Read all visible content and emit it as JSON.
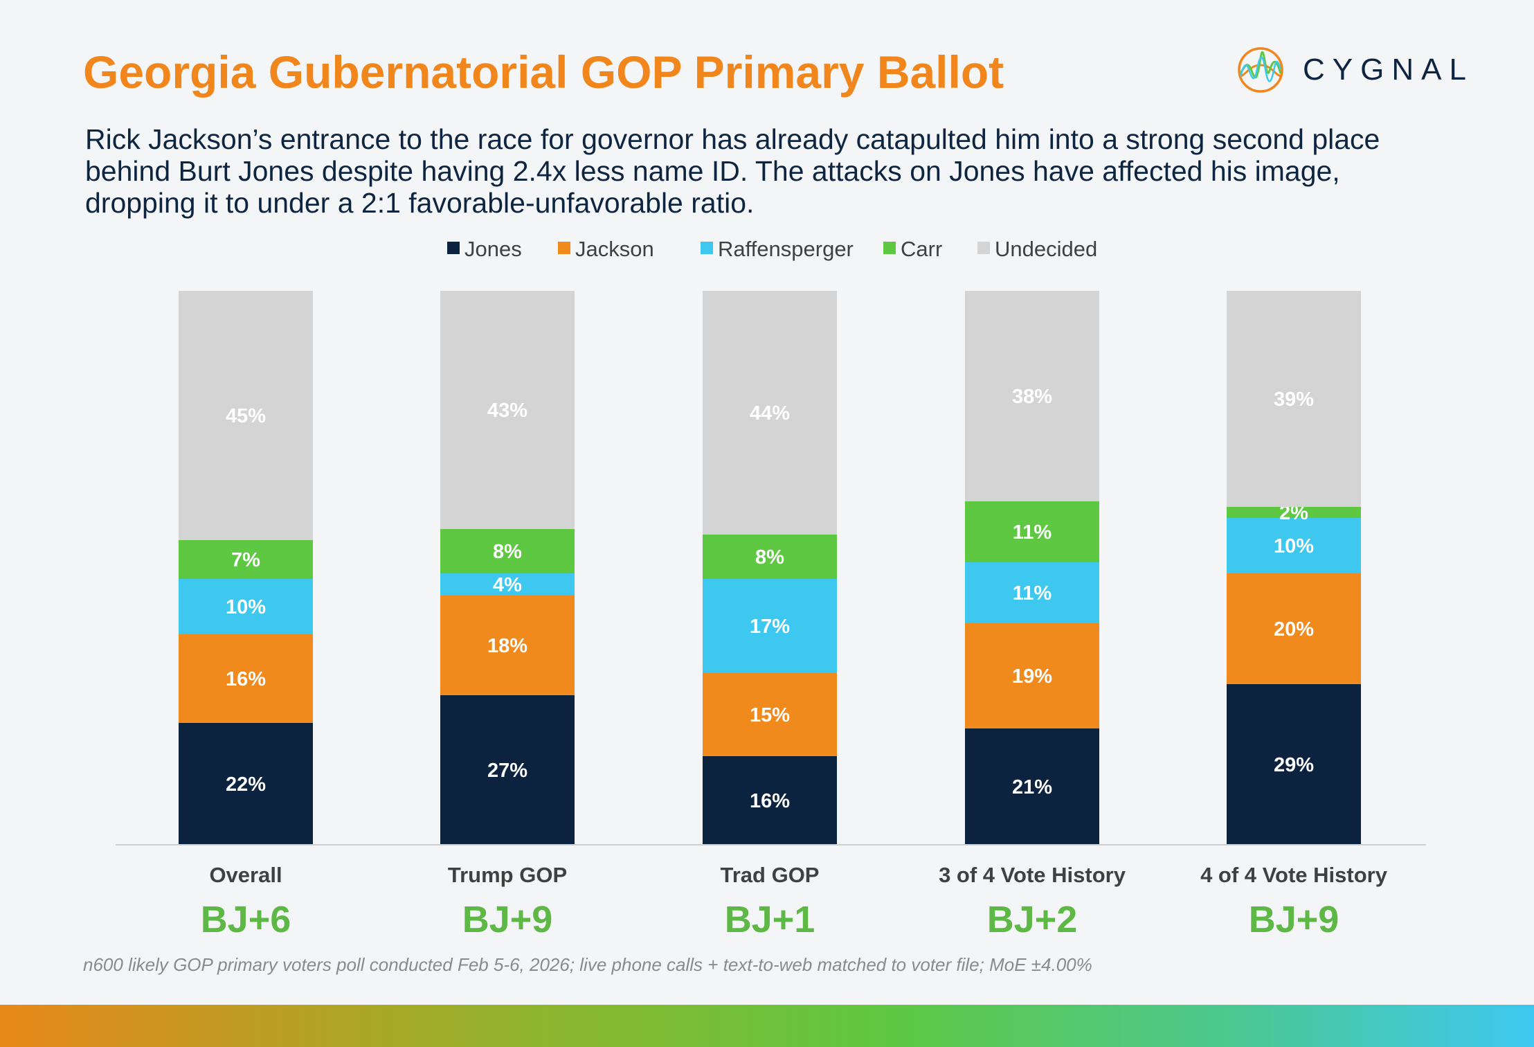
{
  "title": "Georgia Gubernatorial GOP Primary Ballot",
  "subtitle": "Rick Jackson’s entrance to the race for governor has already catapulted him into a strong second place behind Burt Jones despite having 2.4x less name ID. The attacks on Jones have affected his image, dropping it to under a 2:1 favorable-unfavorable ratio.",
  "logo": {
    "text": "CYGNAL",
    "icon": "cygnal-wave-circle-logo"
  },
  "footnote": "n600 likely GOP primary voters poll conducted Feb 5-6, 2026; live phone calls + text-to-web matched to voter file; MoE ±4.00%",
  "colors": {
    "title": "#f0861c",
    "text": "#0d2541",
    "margin_label": "#5db845"
  },
  "chart_data": {
    "type": "bar",
    "stacked": true,
    "legend_position": "top",
    "grid": false,
    "ylim": [
      0,
      100
    ],
    "unit": "%",
    "categories": [
      "Overall",
      "Trump GOP",
      "Trad GOP",
      "3 of 4 Vote History",
      "4 of 4 Vote History"
    ],
    "margin_labels": [
      "BJ+6",
      "BJ+9",
      "BJ+1",
      "BJ+2",
      "BJ+9"
    ],
    "series": [
      {
        "name": "Jones",
        "color": "#0c2340",
        "values": [
          22,
          27,
          16,
          21,
          29
        ]
      },
      {
        "name": "Jackson",
        "color": "#f08a1c",
        "values": [
          16,
          18,
          15,
          19,
          20
        ]
      },
      {
        "name": "Raffensperger",
        "color": "#3ec8f0",
        "values": [
          10,
          4,
          17,
          11,
          10
        ]
      },
      {
        "name": "Carr",
        "color": "#5ec842",
        "values": [
          7,
          8,
          8,
          11,
          2
        ]
      },
      {
        "name": "Undecided",
        "color": "#d4d4d4",
        "values": [
          45,
          43,
          44,
          38,
          39
        ]
      }
    ]
  }
}
